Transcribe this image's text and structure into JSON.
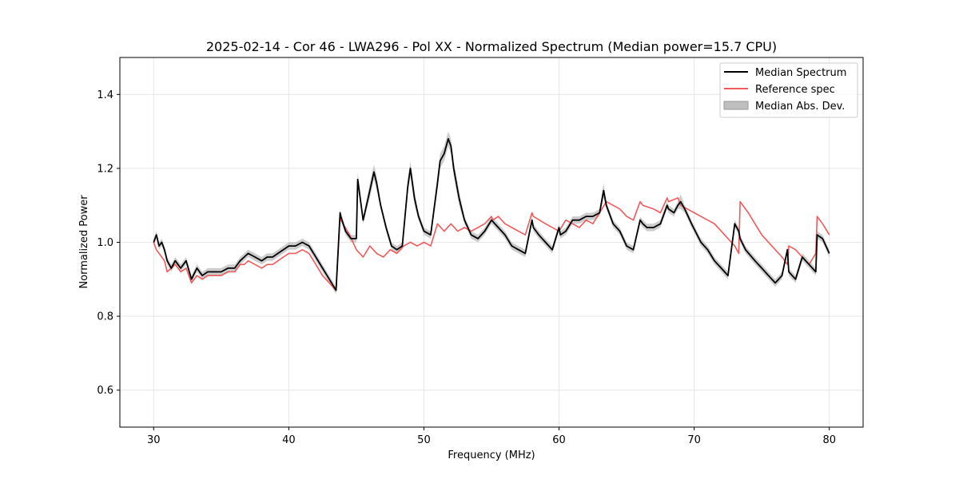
{
  "chart_data": {
    "type": "line",
    "title": "2025-02-14 - Cor 46 - LWA296 - Pol XX - Normalized Spectrum (Median power=15.7 CPU)",
    "xlabel": "Frequency (MHz)",
    "ylabel": "Normalized Power",
    "xlim": [
      27.5,
      82.5
    ],
    "ylim": [
      0.5,
      1.5
    ],
    "xticks": [
      30,
      40,
      50,
      60,
      70,
      80
    ],
    "yticks": [
      0.6,
      0.8,
      1.0,
      1.2,
      1.4
    ],
    "xtick_labels": [
      "30",
      "40",
      "50",
      "60",
      "70",
      "80"
    ],
    "ytick_labels": [
      "0.6",
      "0.8",
      "1.0",
      "1.2",
      "1.4"
    ],
    "grid": true,
    "legend_position": "top-right",
    "colors": {
      "median": "#000000",
      "reference": "#f05a5a",
      "mad": "#bfbfbf"
    },
    "series": [
      {
        "name": "Median Spectrum",
        "x": [
          30.0,
          30.2,
          30.4,
          30.6,
          30.8,
          31.0,
          31.3,
          31.6,
          32.0,
          32.4,
          32.8,
          33.2,
          33.6,
          34.0,
          34.5,
          35.0,
          35.5,
          36.0,
          36.4,
          36.7,
          37.0,
          37.5,
          38.0,
          38.4,
          38.8,
          39.2,
          39.6,
          40.0,
          40.5,
          41.0,
          41.5,
          42.0,
          42.5,
          43.0,
          43.5,
          43.8,
          43.85,
          44.2,
          44.6,
          45.0,
          45.1,
          45.5,
          46.0,
          46.3,
          46.5,
          46.8,
          47.2,
          47.6,
          48.0,
          48.4,
          48.8,
          49.0,
          49.3,
          49.6,
          50.0,
          50.5,
          51.0,
          51.2,
          51.5,
          51.8,
          52.0,
          52.2,
          52.6,
          53.0,
          53.5,
          54.0,
          54.5,
          55.0,
          55.5,
          56.0,
          56.5,
          57.0,
          57.5,
          58.0,
          58.1,
          58.5,
          59.0,
          59.5,
          60.0,
          60.1,
          60.5,
          61.0,
          61.5,
          62.0,
          62.5,
          63.0,
          63.3,
          63.5,
          64.0,
          64.5,
          65.0,
          65.5,
          66.0,
          66.2,
          66.5,
          67.0,
          67.5,
          68.0,
          68.1,
          68.5,
          68.8,
          69.0,
          69.3,
          69.8,
          70.5,
          71.0,
          71.5,
          72.0,
          72.5,
          73.0,
          73.3,
          73.4,
          73.8,
          74.5,
          75.0,
          75.5,
          76.0,
          76.5,
          76.9,
          77.0,
          77.5,
          78.0,
          78.5,
          79.0,
          79.1,
          79.5,
          80.0
        ],
        "y": [
          1.0,
          1.02,
          0.99,
          1.0,
          0.98,
          0.95,
          0.93,
          0.95,
          0.93,
          0.95,
          0.9,
          0.93,
          0.91,
          0.92,
          0.92,
          0.92,
          0.93,
          0.93,
          0.95,
          0.96,
          0.97,
          0.96,
          0.95,
          0.96,
          0.96,
          0.97,
          0.98,
          0.99,
          0.99,
          1.0,
          0.99,
          0.96,
          0.93,
          0.9,
          0.87,
          1.08,
          1.07,
          1.03,
          1.01,
          1.01,
          1.17,
          1.06,
          1.14,
          1.19,
          1.16,
          1.1,
          1.04,
          0.99,
          0.98,
          0.99,
          1.15,
          1.2,
          1.12,
          1.07,
          1.03,
          1.02,
          1.16,
          1.22,
          1.24,
          1.28,
          1.26,
          1.2,
          1.12,
          1.06,
          1.02,
          1.01,
          1.03,
          1.06,
          1.04,
          1.02,
          0.99,
          0.98,
          0.97,
          1.06,
          1.04,
          1.02,
          1.0,
          0.98,
          1.04,
          1.02,
          1.03,
          1.06,
          1.06,
          1.07,
          1.07,
          1.08,
          1.14,
          1.1,
          1.05,
          1.03,
          0.99,
          0.98,
          1.06,
          1.05,
          1.04,
          1.04,
          1.05,
          1.1,
          1.09,
          1.08,
          1.1,
          1.11,
          1.09,
          1.05,
          1.0,
          0.98,
          0.95,
          0.93,
          0.91,
          1.05,
          1.03,
          1.01,
          0.98,
          0.95,
          0.93,
          0.91,
          0.89,
          0.91,
          0.98,
          0.92,
          0.9,
          0.96,
          0.94,
          0.92,
          1.02,
          1.01,
          0.97
        ]
      },
      {
        "name": "Reference spec",
        "x": [
          30.0,
          30.2,
          30.4,
          30.6,
          30.8,
          31.0,
          31.3,
          31.6,
          32.0,
          32.4,
          32.8,
          33.2,
          33.6,
          34.0,
          34.5,
          35.0,
          35.5,
          36.0,
          36.4,
          36.7,
          37.0,
          37.5,
          38.0,
          38.4,
          38.8,
          39.2,
          39.6,
          40.0,
          40.5,
          41.0,
          41.5,
          42.0,
          42.5,
          43.0,
          43.5,
          43.8,
          43.85,
          44.5,
          45.0,
          45.5,
          46.0,
          46.5,
          47.0,
          47.5,
          48.0,
          48.5,
          49.0,
          49.5,
          50.0,
          50.5,
          51.0,
          51.5,
          52.0,
          52.5,
          53.0,
          53.5,
          54.0,
          54.5,
          55.0,
          55.1,
          55.5,
          56.0,
          56.5,
          57.0,
          57.5,
          58.0,
          58.1,
          59.0,
          60.0,
          60.5,
          61.0,
          61.5,
          62.0,
          62.5,
          63.0,
          63.5,
          64.0,
          64.5,
          65.0,
          65.5,
          66.0,
          66.2,
          67.0,
          67.5,
          68.0,
          68.1,
          68.8,
          69.0,
          69.5,
          70.0,
          70.5,
          71.0,
          71.5,
          72.0,
          72.5,
          73.0,
          73.3,
          73.4,
          74.0,
          74.5,
          75.0,
          75.5,
          76.0,
          76.5,
          76.9,
          77.0,
          77.5,
          78.0,
          78.5,
          79.0,
          79.1,
          79.5,
          80.0
        ],
        "y": [
          1.0,
          0.98,
          0.97,
          0.96,
          0.95,
          0.92,
          0.93,
          0.94,
          0.92,
          0.93,
          0.89,
          0.91,
          0.9,
          0.91,
          0.91,
          0.91,
          0.92,
          0.92,
          0.94,
          0.94,
          0.95,
          0.94,
          0.93,
          0.94,
          0.94,
          0.95,
          0.96,
          0.97,
          0.97,
          0.98,
          0.97,
          0.94,
          0.91,
          0.89,
          0.87,
          1.08,
          1.06,
          1.02,
          0.98,
          0.96,
          0.99,
          0.97,
          0.96,
          0.98,
          0.97,
          0.99,
          1.0,
          0.99,
          1.0,
          0.99,
          1.05,
          1.03,
          1.05,
          1.03,
          1.04,
          1.03,
          1.04,
          1.05,
          1.07,
          1.06,
          1.07,
          1.05,
          1.04,
          1.03,
          1.02,
          1.08,
          1.07,
          1.05,
          1.03,
          1.06,
          1.05,
          1.04,
          1.06,
          1.05,
          1.08,
          1.11,
          1.1,
          1.09,
          1.07,
          1.06,
          1.11,
          1.1,
          1.09,
          1.08,
          1.12,
          1.11,
          1.12,
          1.1,
          1.09,
          1.08,
          1.07,
          1.06,
          1.05,
          1.03,
          1.01,
          0.99,
          0.97,
          1.11,
          1.08,
          1.05,
          1.02,
          1.0,
          0.98,
          0.96,
          0.94,
          0.99,
          0.98,
          0.96,
          0.94,
          0.97,
          1.07,
          1.05,
          1.02
        ]
      }
    ],
    "mad_band": {
      "name": "Median Abs. Dev.",
      "note": "Shaded band of ±0.01 around median spectrum, wider near peaks (±0.02)"
    }
  }
}
